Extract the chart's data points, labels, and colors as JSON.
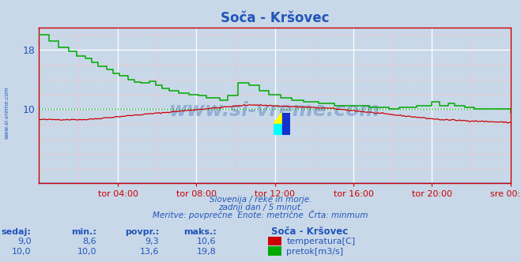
{
  "title": "Soča - Kršovec",
  "title_color": "#2255bb",
  "bg_color": "#c8d8e8",
  "plot_bg_color": "#c8d8e8",
  "text_color": "#2255bb",
  "temp_color": "#cc0000",
  "flow_color": "#00aa00",
  "x_tick_labels": [
    "tor 04:00",
    "tor 08:00",
    "tor 12:00",
    "tor 16:00",
    "tor 20:00",
    "sre 00:00"
  ],
  "x_tick_positions": [
    0.167,
    0.333,
    0.5,
    0.667,
    0.833,
    1.0
  ],
  "y_ticks": [
    10,
    18
  ],
  "ymin": 0,
  "ymax": 21,
  "subtitle1": "Slovenija / reke in morje.",
  "subtitle2": "zadnji dan / 5 minut.",
  "subtitle3": "Meritve: povprečne  Enote: metrične  Črta: minmum",
  "watermark": "www.si-vreme.com",
  "watermark_color": "#1a52a8",
  "left_label": "www.si-vreme.com",
  "legend_title": "Soča - Kršovec",
  "legend_temp_label": "temperatura[C]",
  "legend_flow_label": "pretok[m3/s]",
  "table_headers": [
    "sedaj:",
    "min.:",
    "povpr.:",
    "maks.:"
  ],
  "table_temp": [
    "9,0",
    "8,6",
    "9,3",
    "10,6"
  ],
  "table_flow": [
    "10,0",
    "10,0",
    "13,6",
    "19,8"
  ],
  "flow_min_line": 10.0,
  "temp_min_line": 8.6
}
